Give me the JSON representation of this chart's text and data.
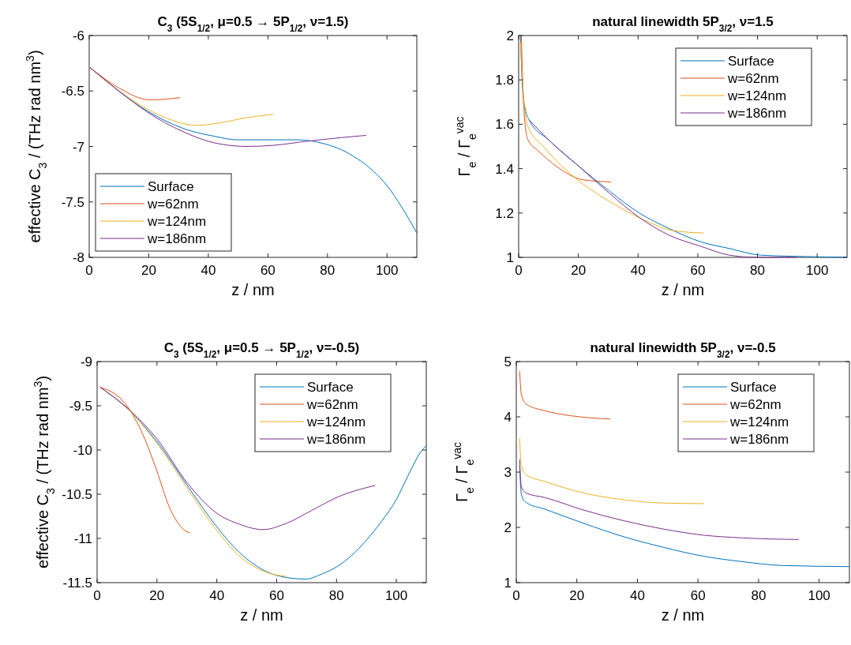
{
  "chart_data": [
    {
      "type": "line",
      "title": "C$_{3}$ (5S$_{1/2}$, μ=0.5 → 5P$_{1/2}$, ν=1.5)",
      "xlabel": "z / nm",
      "ylabel": "effective C$_{3}$ / (THz rad nm$^{3}$)",
      "xlim": [
        0,
        110
      ],
      "ylim": [
        -8,
        -6
      ],
      "xticks": [
        0,
        20,
        40,
        60,
        80,
        100
      ],
      "yticks": [
        -8,
        -7.5,
        -7,
        -6.5,
        -6
      ],
      "legend": "bottom left",
      "series": [
        {
          "name": "Surface",
          "color": "#0072bd",
          "x": [
            0.3,
            19.5,
            31.8,
            42.4,
            49.5,
            69.8,
            79.5,
            84.7,
            90,
            95.3,
            100.2,
            105,
            110
          ],
          "values": [
            -6.29,
            -6.68,
            -6.84,
            -6.91,
            -6.94,
            -6.94,
            -6.98,
            -7.03,
            -7.11,
            -7.22,
            -7.36,
            -7.55,
            -7.78
          ]
        },
        {
          "name": "w=62nm",
          "color": "#d95319",
          "x": [
            0.3,
            9.8,
            20.4,
            30.5
          ],
          "values": [
            -6.29,
            -6.47,
            -6.58,
            -6.56
          ]
        },
        {
          "name": "w=124nm",
          "color": "#edb120",
          "x": [
            0.3,
            10,
            23,
            36.2,
            43.3,
            53,
            61.8
          ],
          "values": [
            -6.29,
            -6.5,
            -6.71,
            -6.81,
            -6.79,
            -6.74,
            -6.71
          ]
        },
        {
          "name": "w=186nm",
          "color": "#7e2f8e",
          "x": [
            0.3,
            10,
            19.5,
            31.8,
            42.4,
            53,
            61.8,
            74,
            84.7,
            93
          ],
          "values": [
            -6.29,
            -6.5,
            -6.69,
            -6.87,
            -6.97,
            -7.0,
            -6.99,
            -6.95,
            -6.92,
            -6.9
          ]
        }
      ]
    },
    {
      "type": "line",
      "title": "natural linewidth 5P$_{3/2}$, ν=1.5",
      "xlabel": "z / nm",
      "ylabel": "Γ$_{e}$ / Γ$_{e}$$^{vac}$",
      "xlim": [
        0,
        110
      ],
      "ylim": [
        1,
        2
      ],
      "xticks": [
        0,
        20,
        40,
        60,
        80,
        100
      ],
      "yticks": [
        1,
        1.2,
        1.4,
        1.6,
        1.8,
        2
      ],
      "legend": "top right",
      "series": [
        {
          "name": "Surface",
          "color": "#0072bd",
          "x": [
            0.6,
            1.3,
            2.2,
            3.5,
            10,
            20.2,
            30.3,
            40.4,
            50.4,
            61,
            70.6,
            81,
            91.7,
            110
          ],
          "values": [
            2.0,
            1.76,
            1.67,
            1.62,
            1.53,
            1.41,
            1.3,
            1.2,
            1.13,
            1.07,
            1.04,
            1.01,
            1.005,
            1.0
          ]
        },
        {
          "name": "w=62nm",
          "color": "#d95319",
          "x": [
            0.9,
            1.8,
            3.1,
            6.6,
            12.7,
            21.5,
            31
          ],
          "values": [
            2.0,
            1.66,
            1.53,
            1.48,
            1.41,
            1.35,
            1.34
          ]
        },
        {
          "name": "w=124nm",
          "color": "#edb120",
          "x": [
            0.6,
            1.8,
            3.1,
            8.3,
            17,
            25.9,
            34.6,
            43.4,
            52,
            62
          ],
          "values": [
            1.97,
            1.7,
            1.59,
            1.5,
            1.38,
            1.29,
            1.22,
            1.16,
            1.12,
            1.11
          ]
        },
        {
          "name": "w=186nm",
          "color": "#7e2f8e",
          "x": [
            3.5,
            10,
            20.2,
            30.3,
            40.4,
            50.4,
            61,
            70.6,
            80,
            93
          ],
          "values": [
            1.62,
            1.53,
            1.41,
            1.29,
            1.18,
            1.1,
            1.05,
            1.01,
            1.0,
            1.0
          ]
        }
      ]
    },
    {
      "type": "line",
      "title": "C$_{3}$ (5S$_{1/2}$, μ=0.5 → 5P$_{1/2}$, ν=-0.5)",
      "xlabel": "z / nm",
      "ylabel": "effective C$_{3}$ / (THz rad nm$^{3}$)",
      "xlim": [
        0,
        110
      ],
      "ylim": [
        -11.5,
        -9
      ],
      "xticks": [
        0,
        20,
        40,
        60,
        80,
        100
      ],
      "yticks": [
        -11.5,
        -11,
        -10.5,
        -10,
        -9.5,
        -9
      ],
      "legend": "top right",
      "series": [
        {
          "name": "Surface",
          "color": "#0072bd",
          "x": [
            1,
            11.3,
            19.9,
            30.3,
            39.8,
            47.6,
            56.3,
            64.9,
            69.7,
            75.3,
            80.1,
            84.8,
            90,
            95.2,
            100,
            103.9,
            108.2,
            110
          ],
          "values": [
            -9.29,
            -9.57,
            -9.9,
            -10.41,
            -10.86,
            -11.16,
            -11.37,
            -11.45,
            -11.46,
            -11.4,
            -11.32,
            -11.2,
            -11.02,
            -10.8,
            -10.56,
            -10.29,
            -10.02,
            -9.95
          ]
        },
        {
          "name": "w=62nm",
          "color": "#d95319",
          "x": [
            1,
            9.5,
            14.7,
            19.9,
            24.2,
            28.6,
            31
          ],
          "values": [
            -9.29,
            -9.48,
            -9.78,
            -10.23,
            -10.65,
            -10.89,
            -10.94
          ]
        },
        {
          "name": "w=124nm",
          "color": "#edb120",
          "x": [
            1,
            11.3,
            19.9,
            30.3,
            39.8,
            47.6,
            56.3,
            63.2
          ],
          "values": [
            -9.29,
            -9.57,
            -9.92,
            -10.44,
            -10.9,
            -11.2,
            -11.38,
            -11.43
          ]
        },
        {
          "name": "w=186nm",
          "color": "#7e2f8e",
          "x": [
            1,
            11.3,
            19.9,
            30.3,
            39.8,
            47.6,
            55.4,
            63.2,
            71.9,
            80.5,
            93
          ],
          "values": [
            -9.29,
            -9.56,
            -9.87,
            -10.38,
            -10.71,
            -10.84,
            -10.9,
            -10.83,
            -10.68,
            -10.53,
            -10.4
          ]
        }
      ]
    },
    {
      "type": "line",
      "title": "natural linewidth 5P$_{3/2}$, ν=-0.5",
      "xlabel": "z / nm",
      "ylabel": "Γ$_{e}$ / Γ$_{e}$$^{vac}$",
      "xlim": [
        0,
        110
      ],
      "ylim": [
        1,
        5
      ],
      "xticks": [
        0,
        20,
        40,
        60,
        80,
        100
      ],
      "yticks": [
        1,
        2,
        3,
        4,
        5
      ],
      "legend": "top right",
      "series": [
        {
          "name": "Surface",
          "color": "#0072bd",
          "x": [
            1.1,
            1.7,
            3.3,
            9.4,
            22.4,
            35.5,
            48.5,
            61.6,
            74.6,
            87.7,
            110
          ],
          "values": [
            3.11,
            2.59,
            2.45,
            2.33,
            2.07,
            1.83,
            1.64,
            1.48,
            1.38,
            1.31,
            1.29
          ]
        },
        {
          "name": "w=62nm",
          "color": "#d95319",
          "x": [
            1.1,
            1.7,
            3.3,
            9.4,
            18,
            25,
            31
          ],
          "values": [
            4.83,
            4.4,
            4.23,
            4.11,
            4.02,
            3.98,
            3.96
          ]
        },
        {
          "name": "w=124nm",
          "color": "#edb120",
          "x": [
            1.1,
            1.7,
            3.3,
            9.4,
            22.4,
            35.5,
            48.5,
            62
          ],
          "values": [
            3.61,
            3.11,
            2.95,
            2.83,
            2.62,
            2.5,
            2.44,
            2.43
          ]
        },
        {
          "name": "w=186nm",
          "color": "#7e2f8e",
          "x": [
            1.1,
            1.7,
            3.3,
            9.4,
            22.4,
            35.5,
            48.5,
            61.6,
            74.6,
            93.3
          ],
          "values": [
            3.23,
            2.73,
            2.62,
            2.54,
            2.31,
            2.12,
            1.97,
            1.86,
            1.81,
            1.78
          ]
        }
      ]
    }
  ]
}
